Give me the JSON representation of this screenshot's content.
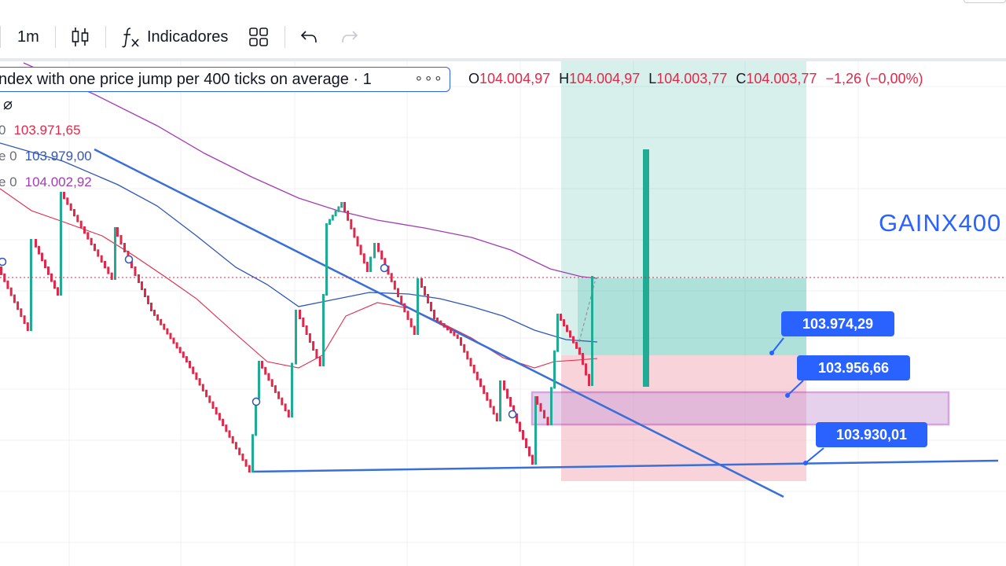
{
  "toolbar": {
    "interval": "1m",
    "chart_type_icon": "candles-icon",
    "indicators_icon": "fx-icon",
    "indicators_label": "Indicadores",
    "layout_icon": "grid-layout-icon",
    "undo_icon": "undo-icon",
    "redo_icon": "redo-icon"
  },
  "legend": {
    "symbol_text": "ndex with one price jump per 400 ticks on average · 1",
    "more_icon": "more-dots-icon",
    "ohlc": {
      "o_label": "O",
      "o_value": "104.004,97",
      "h_label": "H",
      "h_value": "104.004,97",
      "l_label": "L",
      "l_value": "104.003,77",
      "c_label": "C",
      "c_value": "104.003,77",
      "change": "−1,26 (−0,00%)"
    },
    "hidden_icon": "eye-off-icon",
    "indicators": [
      {
        "prefix": "0",
        "value": "103.971,65",
        "color": "#e0294a"
      },
      {
        "prefix": "e 0",
        "value": "103.979,00",
        "color": "#2f56b8"
      },
      {
        "prefix": "e 0",
        "value": "104.002,92",
        "color": "#a23cb4"
      }
    ]
  },
  "watermark": "GAINX400",
  "price_labels": [
    {
      "name": "take-profit-label",
      "text": "103.974,29"
    },
    {
      "name": "entry-price-label",
      "text": "103.956,66"
    },
    {
      "name": "stop-loss-label",
      "text": "103.930,01"
    }
  ],
  "colors": {
    "bull": "#22ab94",
    "bear": "#e0294a",
    "trendline": "#3a6fd8",
    "ma_red": "#e0294a",
    "ma_blue": "#2f56b8",
    "ma_purple": "#a23cb4",
    "profit_zone": "#22ab94",
    "loss_zone": "#f7a8b8",
    "zone_box": "#a23cb4"
  }
}
